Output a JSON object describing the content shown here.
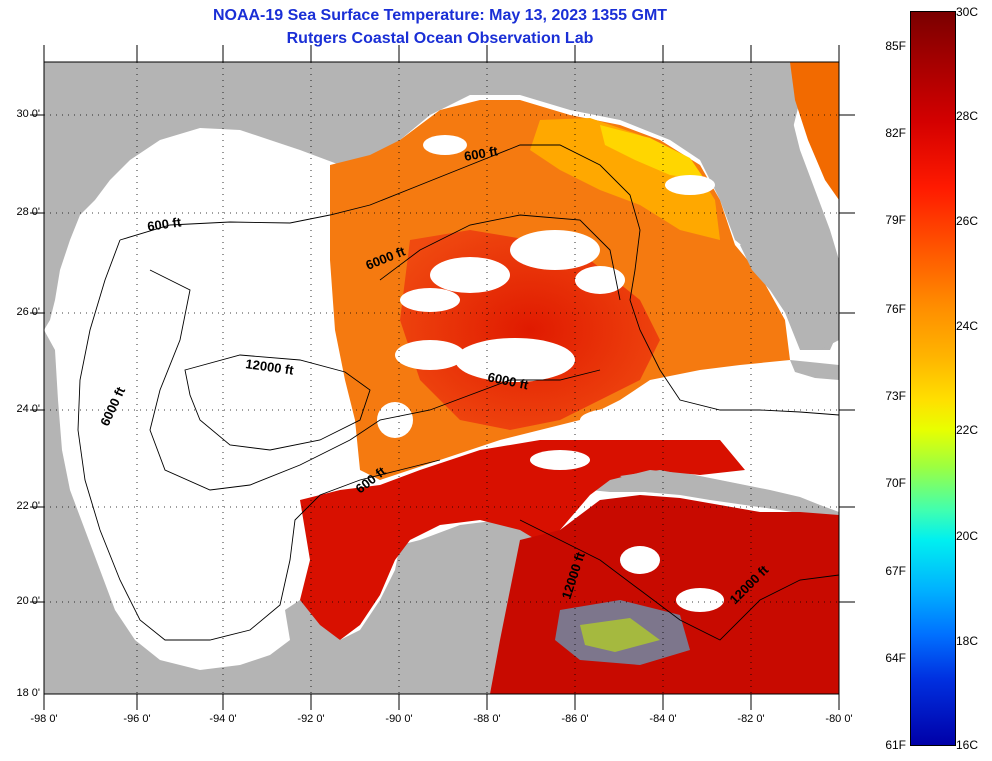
{
  "title": {
    "line1": "NOAA-19 Sea Surface Temperature:  May 13, 2023 1355 GMT",
    "line2": "Rutgers Coastal Ocean Observation Lab"
  },
  "axes": {
    "lat_labels": [
      "30 0'",
      "28 0'",
      "26 0'",
      "24 0'",
      "22 0'",
      "20 0'",
      "18 0'"
    ],
    "lon_labels": [
      "-98 0'",
      "-96 0'",
      "-94 0'",
      "-92 0'",
      "-90 0'",
      "-88 0'",
      "-86 0'",
      "-84 0'",
      "-82 0'",
      "-80 0'"
    ]
  },
  "contour_labels": {
    "c600a": "600 ft",
    "c600b": "600 ft",
    "c600c": "600 ft",
    "c6000a": "6000 ft",
    "c6000b": "6000 ft",
    "c6000c": "6000 ft",
    "c12000a": "12000 ft",
    "c12000b": "12000 ft",
    "c12000c": "12000 ft"
  },
  "colorbar": {
    "fahrenheit": [
      "85F",
      "82F",
      "79F",
      "76F",
      "73F",
      "70F",
      "67F",
      "64F",
      "61F"
    ],
    "celsius": [
      "30C",
      "28C",
      "26C",
      "24C",
      "22C",
      "20C",
      "18C",
      "16C"
    ]
  },
  "colors": {
    "land": "#b4b4b4",
    "cloud": "#ffffff",
    "title": "#1a2fd6"
  }
}
